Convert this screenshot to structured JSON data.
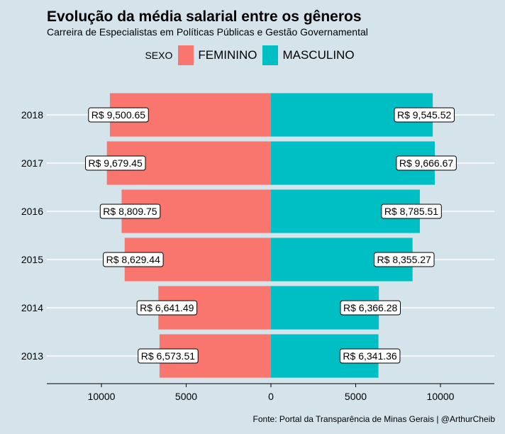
{
  "title": "Evolução da média salarial entre os gêneros",
  "subtitle": "Carreira de Especialistas em Políticas Públicas e Gestão Governamental",
  "legend": {
    "title": "SEXO",
    "female_label": "FEMININO",
    "male_label": "MASCULINO"
  },
  "caption": "Fonte: Portal da Transparência de Minas Gerais | @ArthurCheib",
  "colors": {
    "female": "#f8766d",
    "male": "#00bfc4",
    "background": "#d5e4eb",
    "grid": "#ffffff"
  },
  "chart_data": {
    "type": "bar",
    "orientation": "horizontal-diverging",
    "categories": [
      "2013",
      "2014",
      "2015",
      "2016",
      "2017",
      "2018"
    ],
    "series": [
      {
        "name": "FEMININO",
        "values": [
          6573.51,
          6641.49,
          8629.44,
          8809.75,
          9679.45,
          9500.65
        ],
        "labels": [
          "R$ 6,573.51",
          "R$ 6,641.49",
          "R$ 8,629.44",
          "R$ 8,809.75",
          "R$ 9,679.45",
          "R$ 9,500.65"
        ]
      },
      {
        "name": "MASCULINO",
        "values": [
          6341.36,
          6366.28,
          8355.27,
          8785.51,
          9666.67,
          9545.52
        ],
        "labels": [
          "R$ 6,341.36",
          "R$ 6,366.28",
          "R$ 8,355.27",
          "R$ 8,785.51",
          "R$ 9,666.67",
          "R$ 9,545.52"
        ]
      }
    ],
    "x_ticks": [
      "10000",
      "5000",
      "0",
      "5000",
      "10000"
    ],
    "xlim": [
      -13000,
      13000
    ],
    "legend_position": "top"
  }
}
